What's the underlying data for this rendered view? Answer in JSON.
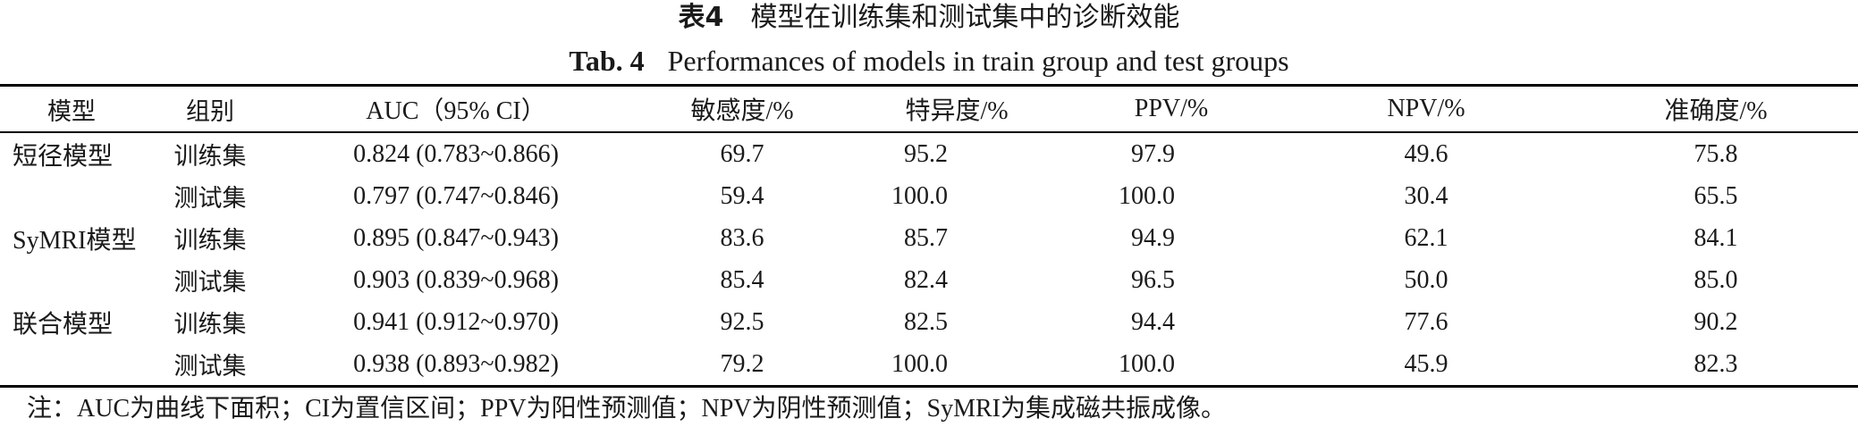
{
  "title_cn": {
    "number": "表4",
    "text": "模型在训练集和测试集中的诊断效能"
  },
  "title_en": {
    "number": "Tab. 4",
    "text": "Performances of models in train group and test groups"
  },
  "columns": [
    "模型",
    "组别",
    "AUC（95% CI）",
    "敏感度/%",
    "特异度/%",
    "PPV/%",
    "NPV/%",
    "准确度/%"
  ],
  "rows": [
    {
      "model": "短径模型",
      "group": "训练集",
      "auc": "0.824 (0.783~0.866)",
      "sens": "69.7",
      "spec": "95.2",
      "ppv": "97.9",
      "npv": "49.6",
      "acc": "75.8"
    },
    {
      "model": "",
      "group": "测试集",
      "auc": "0.797 (0.747~0.846)",
      "sens": "59.4",
      "spec": "100.0",
      "ppv": "100.0",
      "npv": "30.4",
      "acc": "65.5"
    },
    {
      "model": "SyMRI模型",
      "group": "训练集",
      "auc": "0.895 (0.847~0.943)",
      "sens": "83.6",
      "spec": "85.7",
      "ppv": "94.9",
      "npv": "62.1",
      "acc": "84.1"
    },
    {
      "model": "",
      "group": "测试集",
      "auc": "0.903 (0.839~0.968)",
      "sens": "85.4",
      "spec": "82.4",
      "ppv": "96.5",
      "npv": "50.0",
      "acc": "85.0"
    },
    {
      "model": "联合模型",
      "group": "训练集",
      "auc": "0.941 (0.912~0.970)",
      "sens": "92.5",
      "spec": "82.5",
      "ppv": "94.4",
      "npv": "77.6",
      "acc": "90.2"
    },
    {
      "model": "",
      "group": "测试集",
      "auc": "0.938 (0.893~0.982)",
      "sens": "79.2",
      "spec": "100.0",
      "ppv": "100.0",
      "npv": "45.9",
      "acc": "82.3"
    }
  ],
  "note": "注：AUC为曲线下面积；CI为置信区间；PPV为阳性预测值；NPV为阴性预测值；SyMRI为集成磁共振成像。"
}
